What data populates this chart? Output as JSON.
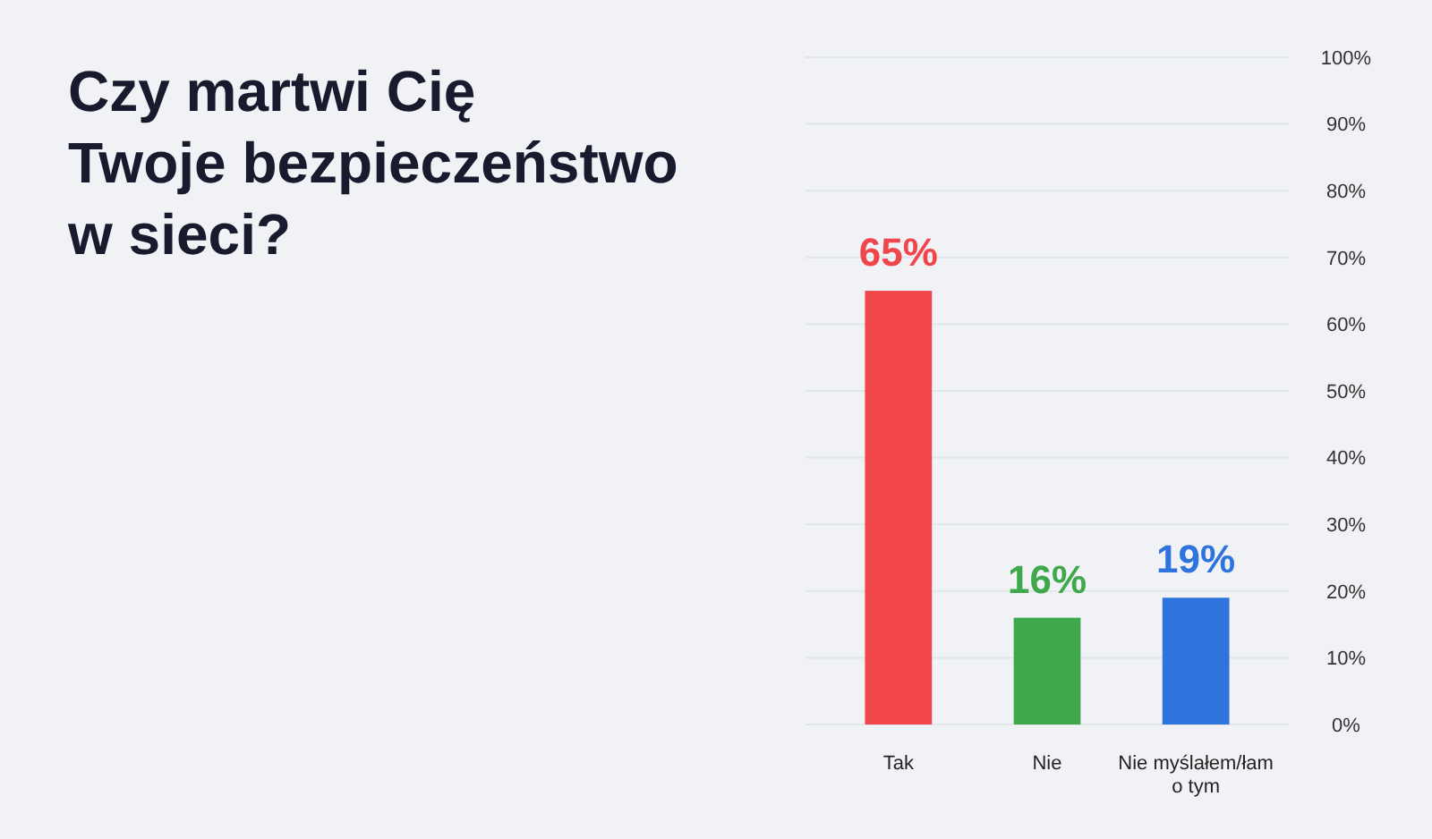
{
  "chart_data": {
    "type": "bar",
    "title": "Czy martwi Cię\nTwoje bezpieczeństwo\nw sieci?",
    "categories": [
      "Tak",
      "Nie",
      "Nie myślałem/łam o tym"
    ],
    "values": [
      65,
      16,
      19
    ],
    "colors": [
      "#f0454a",
      "#3fa84a",
      "#2e74dc"
    ],
    "value_labels": [
      "65%",
      "16%",
      "19%"
    ],
    "ylim": [
      0,
      100
    ],
    "yticks": [
      {
        "value": 0,
        "label": "0%"
      },
      {
        "value": 10,
        "label": "10%"
      },
      {
        "value": 20,
        "label": "20%"
      },
      {
        "value": 30,
        "label": "30%"
      },
      {
        "value": 40,
        "label": "40%"
      },
      {
        "value": 50,
        "label": "50%"
      },
      {
        "value": 60,
        "label": "60%"
      },
      {
        "value": 70,
        "label": "70%"
      },
      {
        "value": 80,
        "label": "80%"
      },
      {
        "value": 90,
        "label": "90%"
      },
      {
        "value": 100,
        "label": "100%"
      }
    ],
    "grid": "y"
  }
}
